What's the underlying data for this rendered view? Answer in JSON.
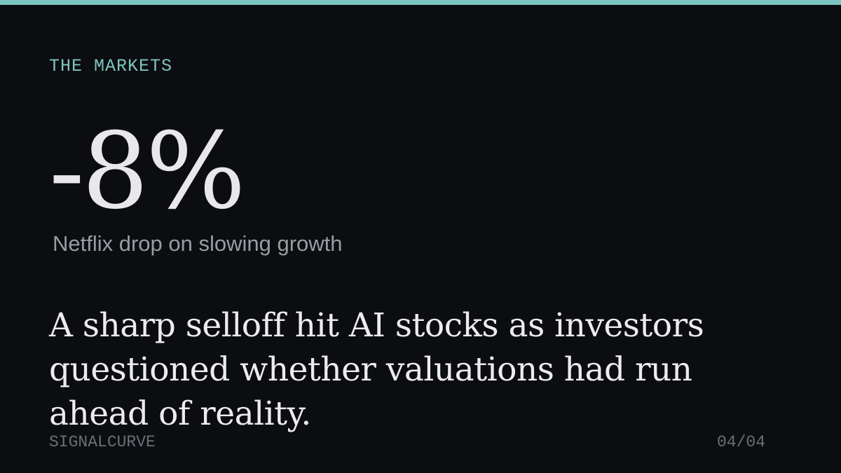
{
  "section": "THE MARKETS",
  "stat": {
    "value": "-8%",
    "caption": "Netflix drop on slowing growth"
  },
  "body": "A sharp selloff hit AI stocks as investors questioned whether valuations had run ahead of reality.",
  "footer": {
    "brand": "SIGNALCURVE",
    "page": "04/04"
  }
}
